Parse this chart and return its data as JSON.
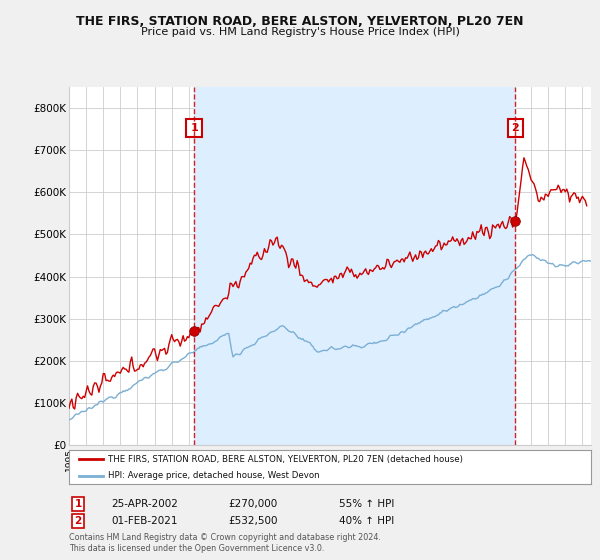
{
  "title": "THE FIRS, STATION ROAD, BERE ALSTON, YELVERTON, PL20 7EN",
  "subtitle": "Price paid vs. HM Land Registry's House Price Index (HPI)",
  "legend_line1": "THE FIRS, STATION ROAD, BERE ALSTON, YELVERTON, PL20 7EN (detached house)",
  "legend_line2": "HPI: Average price, detached house, West Devon",
  "footnote": "Contains HM Land Registry data © Crown copyright and database right 2024.\nThis data is licensed under the Open Government Licence v3.0.",
  "marker1_date": "25-APR-2002",
  "marker1_price": "£270,000",
  "marker1_hpi": "55% ↑ HPI",
  "marker1_year": 2002.31,
  "marker2_date": "01-FEB-2021",
  "marker2_price": "£532,500",
  "marker2_hpi": "40% ↑ HPI",
  "marker2_year": 2021.08,
  "red_color": "#cc0000",
  "blue_color": "#7bafd4",
  "shade_color": "#ddeeff",
  "background_color": "#f0f0f0",
  "plot_bg_color": "#ffffff",
  "grid_color": "#cccccc",
  "ylim_min": 0,
  "ylim_max": 850000,
  "xlim_min": 1995,
  "xlim_max": 2025.5,
  "yticks": [
    0,
    100000,
    200000,
    300000,
    400000,
    500000,
    600000,
    700000,
    800000
  ],
  "xticks": [
    1995,
    1996,
    1997,
    1998,
    1999,
    2000,
    2001,
    2002,
    2003,
    2004,
    2005,
    2006,
    2007,
    2008,
    2009,
    2010,
    2011,
    2012,
    2013,
    2014,
    2015,
    2016,
    2017,
    2018,
    2019,
    2020,
    2021,
    2022,
    2023,
    2024,
    2025
  ]
}
